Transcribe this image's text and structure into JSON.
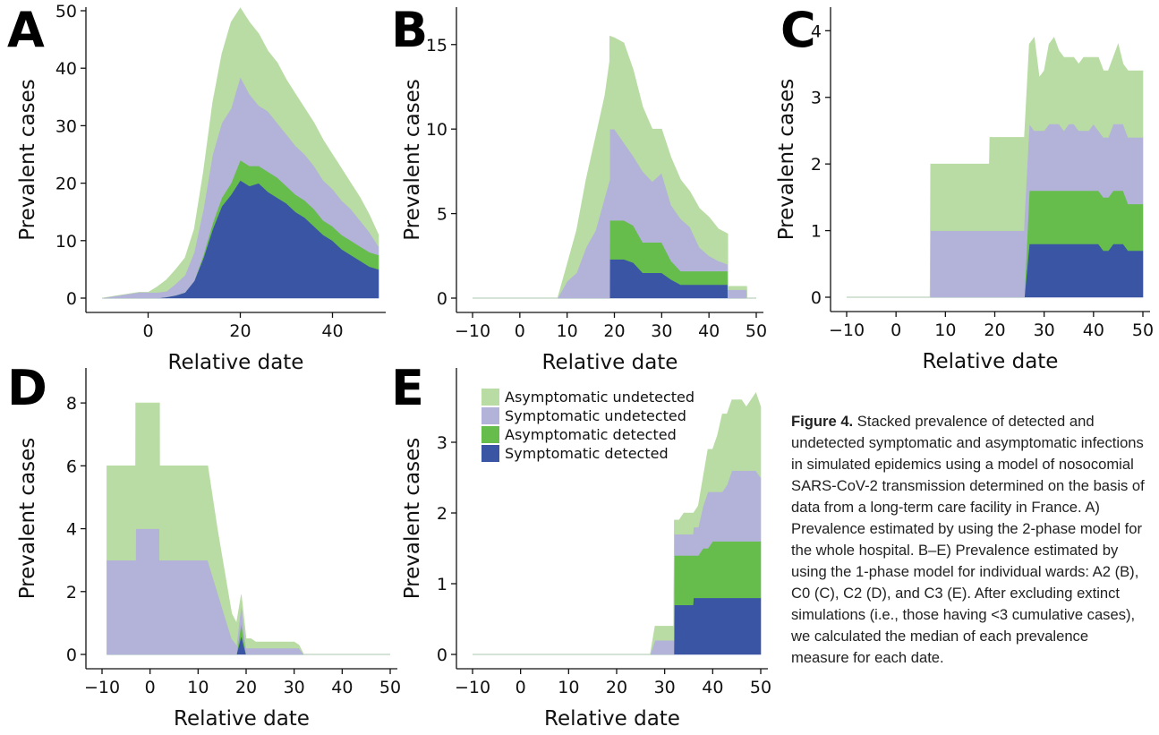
{
  "caption": {
    "label": "Figure 4.",
    "text": "Stacked prevalence of detected and undetected symptomatic and asymptomatic infections in simulated epidemics using a model of nosocomial SARS-CoV-2 transmission determined on the basis of data from a long-term care facility in France. A) Prevalence estimated by using the 2-phase model for the whole hospital. B–E) Prevalence estimated by using the 1-phase model for individual wards: A2 (B), C0 (C), C2 (D), and C3 (E). After excluding extinct simulations (i.e., those having <3 cumulative cases), we calculated the median of each prevalence measure for each date."
  },
  "legend": {
    "entries": [
      "Asymptomatic undetected",
      "Symptomatic undetected",
      "Asymptomatic detected",
      "Symptomatic detected"
    ],
    "colors": [
      "#b9dca4",
      "#b3b2d8",
      "#66bd4c",
      "#3a55a4"
    ]
  },
  "chart_data": [
    {
      "panel": "A",
      "type": "area",
      "stacked": true,
      "xlabel": "Relative date",
      "ylabel": "Prevalent cases",
      "xlim": [
        -10,
        50
      ],
      "ylim": [
        0,
        50
      ],
      "xticks": [
        0,
        20,
        40
      ],
      "yticks": [
        0,
        10,
        20,
        30,
        40,
        50
      ],
      "x": [
        -10,
        -2,
        0,
        2,
        4,
        6,
        8,
        10,
        12,
        14,
        16,
        18,
        20,
        22,
        24,
        26,
        28,
        30,
        32,
        34,
        36,
        38,
        40,
        42,
        44,
        46,
        48,
        50
      ],
      "series": [
        {
          "name": "Symptomatic detected",
          "color": "#3a55a4",
          "values": [
            0,
            0,
            0,
            0,
            0.2,
            0.5,
            1,
            3,
            7,
            12,
            16,
            18,
            20.5,
            19.5,
            20,
            18.5,
            17.5,
            16.5,
            15,
            14,
            12.5,
            11,
            10,
            8.5,
            7.5,
            6.5,
            5.5,
            5
          ]
        },
        {
          "name": "Asymptomatic detected",
          "color": "#66bd4c",
          "values": [
            0,
            0,
            0,
            0,
            0,
            0,
            0,
            0,
            0.5,
            1,
            1.5,
            2,
            3.5,
            3.5,
            3,
            3.5,
            3.5,
            3,
            3,
            3,
            3,
            2.5,
            2.5,
            2.5,
            2.5,
            2.5,
            2.5,
            2.5
          ]
        },
        {
          "name": "Symptomatic undetected",
          "color": "#b3b2d8",
          "values": [
            0,
            1,
            1,
            1,
            1,
            2,
            3,
            5,
            8,
            12,
            13,
            13,
            14.5,
            12.5,
            10.5,
            10.5,
            9.5,
            9,
            8.5,
            8,
            7.5,
            7,
            6.5,
            6,
            5.5,
            4.5,
            3.5,
            1.5
          ]
        },
        {
          "name": "Asymptomatic undetected",
          "color": "#b9dca4",
          "values": [
            0,
            0,
            0,
            1,
            2,
            2.5,
            3,
            4,
            6.5,
            9,
            12,
            15,
            12,
            12.5,
            12.5,
            10.5,
            10.5,
            9.5,
            9,
            8,
            7.5,
            7,
            6,
            5.5,
            4.5,
            4,
            3,
            2
          ]
        }
      ]
    },
    {
      "panel": "B",
      "type": "area",
      "stacked": true,
      "xlabel": "Relative date",
      "ylabel": "Prevalent cases",
      "xlim": [
        -10,
        50
      ],
      "ylim": [
        0,
        17
      ],
      "xticks": [
        -10,
        0,
        10,
        20,
        30,
        40,
        50
      ],
      "yticks": [
        0,
        5,
        10,
        15
      ],
      "x": [
        -10,
        8,
        10,
        12,
        14,
        16,
        18,
        19,
        19.01,
        20,
        22,
        24,
        26,
        28,
        30,
        32,
        34,
        36,
        38,
        40,
        42,
        43.99,
        44,
        48,
        48.01,
        50
      ],
      "series": [
        {
          "name": "Symptomatic detected",
          "color": "#3a55a4",
          "values": [
            0,
            0,
            0,
            0,
            0,
            0,
            0,
            0,
            2.3,
            2.3,
            2.3,
            2.1,
            1.5,
            1.5,
            1.5,
            1.1,
            0.8,
            0.8,
            0.8,
            0.8,
            0.8,
            0.8,
            0,
            0,
            0,
            0
          ]
        },
        {
          "name": "Asymptomatic detected",
          "color": "#66bd4c",
          "values": [
            0,
            0,
            0,
            0,
            0,
            0,
            0,
            0,
            2.3,
            2.3,
            2.3,
            2.2,
            1.8,
            1.8,
            1.8,
            1.1,
            0.8,
            0.8,
            0.8,
            0.8,
            0.8,
            0.8,
            0,
            0,
            0,
            0
          ]
        },
        {
          "name": "Symptomatic undetected",
          "color": "#b3b2d8",
          "values": [
            0,
            0,
            1,
            1.5,
            3,
            4,
            6,
            7,
            5.4,
            5.4,
            4.6,
            4.1,
            4.2,
            3.6,
            4.1,
            3.3,
            3.1,
            2.6,
            1.4,
            0.9,
            0.6,
            0.4,
            0.5,
            0.5,
            0,
            0
          ]
        },
        {
          "name": "Asymptomatic undetected",
          "color": "#b9dca4",
          "values": [
            0,
            0,
            1,
            2.5,
            4,
            5.5,
            6,
            7,
            5.5,
            5.4,
            5.9,
            5.1,
            3.8,
            3.1,
            2.6,
            2.8,
            2.3,
            2.1,
            2.3,
            2.3,
            1.9,
            1.8,
            0.2,
            0.2,
            0,
            0
          ]
        }
      ]
    },
    {
      "panel": "C",
      "type": "area",
      "stacked": true,
      "xlabel": "Relative date",
      "ylabel": "Prevalent cases",
      "xlim": [
        -10,
        50
      ],
      "ylim": [
        0,
        4.3
      ],
      "xticks": [
        -10,
        0,
        10,
        20,
        30,
        40,
        50
      ],
      "yticks": [
        0,
        1,
        2,
        3,
        4
      ],
      "x": [
        -10,
        6.9,
        7,
        18.9,
        19,
        25.9,
        26,
        27,
        28,
        29,
        30,
        31,
        32,
        33,
        34,
        35,
        36,
        37,
        38,
        39,
        40,
        41,
        42,
        43,
        44,
        45,
        46,
        47,
        48,
        49,
        50
      ],
      "series": [
        {
          "name": "Symptomatic detected",
          "color": "#3a55a4",
          "values": [
            0,
            0,
            0,
            0,
            0,
            0,
            0,
            0.8,
            0.8,
            0.8,
            0.8,
            0.8,
            0.8,
            0.8,
            0.8,
            0.8,
            0.8,
            0.8,
            0.8,
            0.8,
            0.8,
            0.8,
            0.7,
            0.7,
            0.8,
            0.8,
            0.8,
            0.7,
            0.7,
            0.7,
            0.7
          ]
        },
        {
          "name": "Asymptomatic detected",
          "color": "#66bd4c",
          "values": [
            0,
            0,
            0,
            0,
            0,
            0,
            0,
            0.8,
            0.8,
            0.8,
            0.8,
            0.8,
            0.8,
            0.8,
            0.8,
            0.8,
            0.8,
            0.8,
            0.8,
            0.8,
            0.8,
            0.8,
            0.8,
            0.8,
            0.8,
            0.8,
            0.8,
            0.7,
            0.7,
            0.7,
            0.7
          ]
        },
        {
          "name": "Symptomatic undetected",
          "color": "#b3b2d8",
          "values": [
            0,
            0,
            1,
            1,
            1,
            1,
            1.2,
            1.0,
            0.9,
            0.9,
            0.9,
            1.0,
            1.0,
            1.0,
            0.9,
            1.0,
            1.0,
            0.9,
            0.9,
            0.9,
            1.0,
            0.9,
            0.9,
            0.9,
            1.0,
            1.0,
            1.0,
            1.0,
            1.0,
            1.0,
            1.0
          ]
        },
        {
          "name": "Asymptomatic undetected",
          "color": "#b9dca4",
          "values": [
            0,
            0,
            1,
            1,
            1.4,
            1.4,
            1.2,
            1.2,
            1.4,
            0.8,
            0.9,
            1.2,
            1.3,
            1.1,
            1.1,
            1.0,
            1.0,
            1.0,
            1.1,
            1.1,
            1.0,
            1.1,
            1.0,
            1.0,
            1.0,
            1.2,
            0.9,
            1.0,
            1.0,
            1.0,
            1.0
          ]
        }
      ]
    },
    {
      "panel": "D",
      "type": "area",
      "stacked": true,
      "xlabel": "Relative date",
      "ylabel": "Prevalent cases",
      "xlim": [
        -10,
        50
      ],
      "ylim": [
        0,
        9
      ],
      "xticks": [
        -10,
        0,
        10,
        20,
        30,
        40,
        50
      ],
      "yticks": [
        0,
        2,
        4,
        6,
        8
      ],
      "x": [
        -9,
        -6.01,
        -6,
        -3.01,
        -3,
        0,
        1.99,
        2,
        12,
        14,
        16,
        17,
        18,
        19,
        20,
        21,
        22,
        30,
        31,
        32,
        50
      ],
      "series": [
        {
          "name": "Symptomatic detected",
          "color": "#3a55a4",
          "values": [
            0,
            0,
            0,
            0,
            0,
            0,
            0,
            0,
            0,
            0,
            0,
            0,
            0,
            0.6,
            0,
            0,
            0,
            0,
            0,
            0,
            0
          ]
        },
        {
          "name": "Asymptomatic detected",
          "color": "#66bd4c",
          "values": [
            0,
            0,
            0,
            0,
            0,
            0,
            0,
            0,
            0,
            0,
            0,
            0,
            0,
            0.4,
            0,
            0,
            0,
            0,
            0,
            0,
            0
          ]
        },
        {
          "name": "Symptomatic undetected",
          "color": "#b3b2d8",
          "values": [
            3,
            3,
            3,
            3,
            4,
            4,
            4,
            3,
            3,
            2,
            1,
            0.5,
            0.3,
            0.6,
            0.2,
            0.2,
            0.2,
            0.2,
            0.2,
            0,
            0
          ]
        },
        {
          "name": "Asymptomatic undetected",
          "color": "#b9dca4",
          "values": [
            3,
            3,
            3,
            3,
            4,
            4,
            4,
            3,
            3,
            2,
            1.2,
            0.8,
            0.7,
            0.3,
            0.3,
            0.3,
            0.2,
            0.2,
            0.1,
            0,
            0
          ]
        }
      ]
    },
    {
      "panel": "E",
      "type": "area",
      "stacked": true,
      "xlabel": "Relative date",
      "ylabel": "Prevalent cases",
      "xlim": [
        -10,
        50
      ],
      "ylim": [
        0,
        4
      ],
      "xticks": [
        -10,
        0,
        10,
        20,
        30,
        40,
        50
      ],
      "yticks": [
        0,
        1,
        2,
        3
      ],
      "x": [
        -10,
        27,
        28,
        30,
        31,
        31.9,
        32,
        33,
        34,
        35.9,
        36,
        37,
        38,
        39,
        40,
        41,
        42,
        43,
        44,
        45,
        46,
        47,
        48,
        49,
        50
      ],
      "series": [
        {
          "name": "Symptomatic detected",
          "color": "#3a55a4",
          "values": [
            0,
            0,
            0,
            0,
            0,
            0,
            0.7,
            0.7,
            0.7,
            0.7,
            0.8,
            0.8,
            0.8,
            0.8,
            0.8,
            0.8,
            0.8,
            0.8,
            0.8,
            0.8,
            0.8,
            0.8,
            0.8,
            0.8,
            0.8
          ]
        },
        {
          "name": "Asymptomatic detected",
          "color": "#66bd4c",
          "values": [
            0,
            0,
            0,
            0,
            0,
            0,
            0.7,
            0.7,
            0.7,
            0.7,
            0.6,
            0.6,
            0.7,
            0.7,
            0.8,
            0.8,
            0.8,
            0.8,
            0.8,
            0.8,
            0.8,
            0.8,
            0.8,
            0.8,
            0.8
          ]
        },
        {
          "name": "Symptomatic undetected",
          "color": "#b3b2d8",
          "values": [
            0,
            0,
            0.2,
            0.2,
            0.2,
            0.2,
            0.3,
            0.3,
            0.3,
            0.3,
            0.4,
            0.4,
            0.6,
            0.8,
            0.7,
            0.7,
            0.7,
            0.8,
            1.0,
            1.0,
            1.0,
            1.0,
            1.0,
            1.0,
            0.9
          ]
        },
        {
          "name": "Asymptomatic undetected",
          "color": "#b9dca4",
          "values": [
            0,
            0,
            0.2,
            0.2,
            0.2,
            0.2,
            0.2,
            0.2,
            0.3,
            0.3,
            0.2,
            0.3,
            0.4,
            0.6,
            0.6,
            0.8,
            1.1,
            1.0,
            1.0,
            1.0,
            1.0,
            0.9,
            1.0,
            1.1,
            1.0
          ]
        }
      ]
    }
  ]
}
